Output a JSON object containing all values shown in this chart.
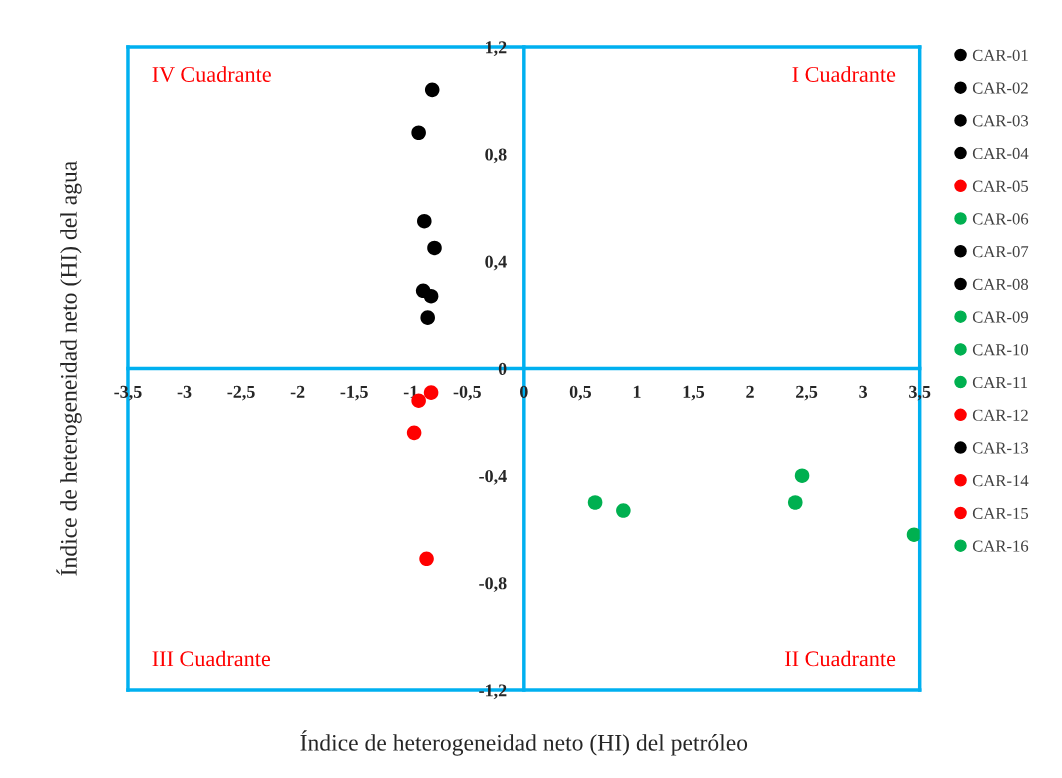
{
  "chart_data": {
    "type": "scatter",
    "xlabel": "Índice de heterogeneidad neto (HI) del petróleo",
    "ylabel": "Índice de heterogeneidad neto (HI) del agua",
    "annotations": [
      "IV Cuadrante",
      "I Cuadrante",
      "III Cuadrante",
      "II Cuadrante"
    ],
    "xlim": [
      -3.5,
      3.5
    ],
    "xticks": [
      {
        "value": -3.5,
        "label": "-3,5"
      },
      -3,
      {
        "value": -2.5,
        "label": "-2,5"
      },
      -2,
      {
        "value": -1.5,
        "label": "-1,5"
      },
      -1,
      {
        "value": -0.5,
        "label": "-0,5"
      },
      0,
      {
        "value": 0.5,
        "label": "0,5"
      },
      1,
      {
        "value": 1.5,
        "label": "1,5"
      },
      2,
      {
        "value": 2.5,
        "label": "2,5"
      },
      3,
      {
        "value": 3.5,
        "label": "3,5"
      }
    ],
    "ylim": [
      -1.2,
      1.2
    ],
    "yticks": [
      {
        "value": -1.2,
        "label": "-1,2"
      },
      {
        "value": -0.8,
        "label": "-0,8"
      },
      {
        "value": -0.4,
        "label": "-0,4"
      },
      0,
      {
        "value": 0.4,
        "label": "0,4"
      },
      {
        "value": 0.8,
        "label": "0,8"
      },
      {
        "value": 1.2,
        "label": "1,2"
      }
    ],
    "marker": "circle",
    "grid": false,
    "legend": "right",
    "series": [
      {
        "name": "CAR-01",
        "color": "#000000",
        "x": [
          -0.81
        ],
        "values": [
          1.04
        ]
      },
      {
        "name": "CAR-02",
        "color": "#000000",
        "x": [
          -0.93
        ],
        "values": [
          0.88
        ]
      },
      {
        "name": "CAR-03",
        "color": "#000000",
        "x": [
          -0.88
        ],
        "values": [
          0.55
        ]
      },
      {
        "name": "CAR-04",
        "color": "#000000",
        "x": [
          -0.79
        ],
        "values": [
          0.45
        ]
      },
      {
        "name": "CAR-05",
        "color": "#ff0000",
        "x": [
          -0.82
        ],
        "values": [
          -0.09
        ]
      },
      {
        "name": "CAR-06",
        "color": "#00b050",
        "x": [
          0.63
        ],
        "values": [
          -0.5
        ]
      },
      {
        "name": "CAR-07",
        "color": "#000000",
        "x": [
          -0.89
        ],
        "values": [
          0.29
        ]
      },
      {
        "name": "CAR-08",
        "color": "#000000",
        "x": [
          -0.82
        ],
        "values": [
          0.27
        ]
      },
      {
        "name": "CAR-09",
        "color": "#00b050",
        "x": [
          0.88
        ],
        "values": [
          -0.53
        ]
      },
      {
        "name": "CAR-10",
        "color": "#00b050",
        "x": [
          2.4
        ],
        "values": [
          -0.5
        ]
      },
      {
        "name": "CAR-11",
        "color": "#00b050",
        "x": [
          2.46
        ],
        "values": [
          -0.4
        ]
      },
      {
        "name": "CAR-12",
        "color": "#ff0000",
        "x": [
          -0.93
        ],
        "values": [
          -0.12
        ]
      },
      {
        "name": "CAR-13",
        "color": "#000000",
        "x": [
          -0.85
        ],
        "values": [
          0.19
        ]
      },
      {
        "name": "CAR-14",
        "color": "#ff0000",
        "x": [
          -0.97
        ],
        "values": [
          -0.24
        ]
      },
      {
        "name": "CAR-15",
        "color": "#ff0000",
        "x": [
          -0.86
        ],
        "values": [
          -0.71
        ]
      },
      {
        "name": "CAR-16",
        "color": "#00b050",
        "x": [
          3.45
        ],
        "values": [
          -0.62
        ]
      }
    ]
  }
}
